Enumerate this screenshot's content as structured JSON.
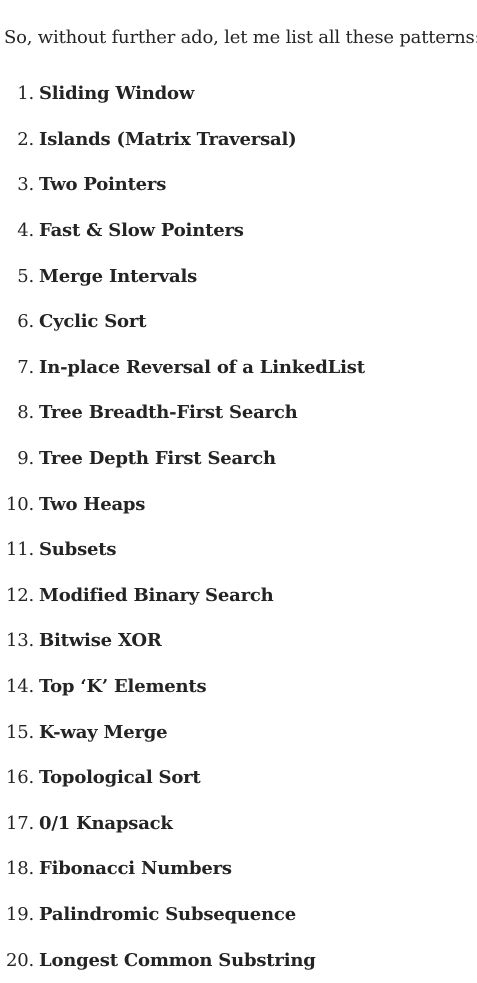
{
  "intro": "So, without further ado, let me list all these patterns:",
  "patterns": [
    {
      "num": "1.",
      "label": "Sliding Window"
    },
    {
      "num": "2.",
      "label": "Islands (Matrix Traversal)"
    },
    {
      "num": "3.",
      "label": "Two Pointers"
    },
    {
      "num": "4.",
      "label": "Fast & Slow Pointers"
    },
    {
      "num": "5.",
      "label": "Merge Intervals"
    },
    {
      "num": "6.",
      "label": "Cyclic Sort"
    },
    {
      "num": "7.",
      "label": "In-place Reversal of a LinkedList"
    },
    {
      "num": "8.",
      "label": "Tree Breadth-First Search"
    },
    {
      "num": "9.",
      "label": "Tree Depth First Search"
    },
    {
      "num": "10.",
      "label": "Two Heaps"
    },
    {
      "num": "11.",
      "label": "Subsets"
    },
    {
      "num": "12.",
      "label": "Modified Binary Search"
    },
    {
      "num": "13.",
      "label": "Bitwise XOR"
    },
    {
      "num": "14.",
      "label": "Top ‘K’ Elements"
    },
    {
      "num": "15.",
      "label": "K-way Merge"
    },
    {
      "num": "16.",
      "label": "Topological Sort"
    },
    {
      "num": "17.",
      "label": "0/1 Knapsack"
    },
    {
      "num": "18.",
      "label": "Fibonacci Numbers"
    },
    {
      "num": "19.",
      "label": "Palindromic Subsequence"
    },
    {
      "num": "20.",
      "label": "Longest Common Substring"
    }
  ]
}
